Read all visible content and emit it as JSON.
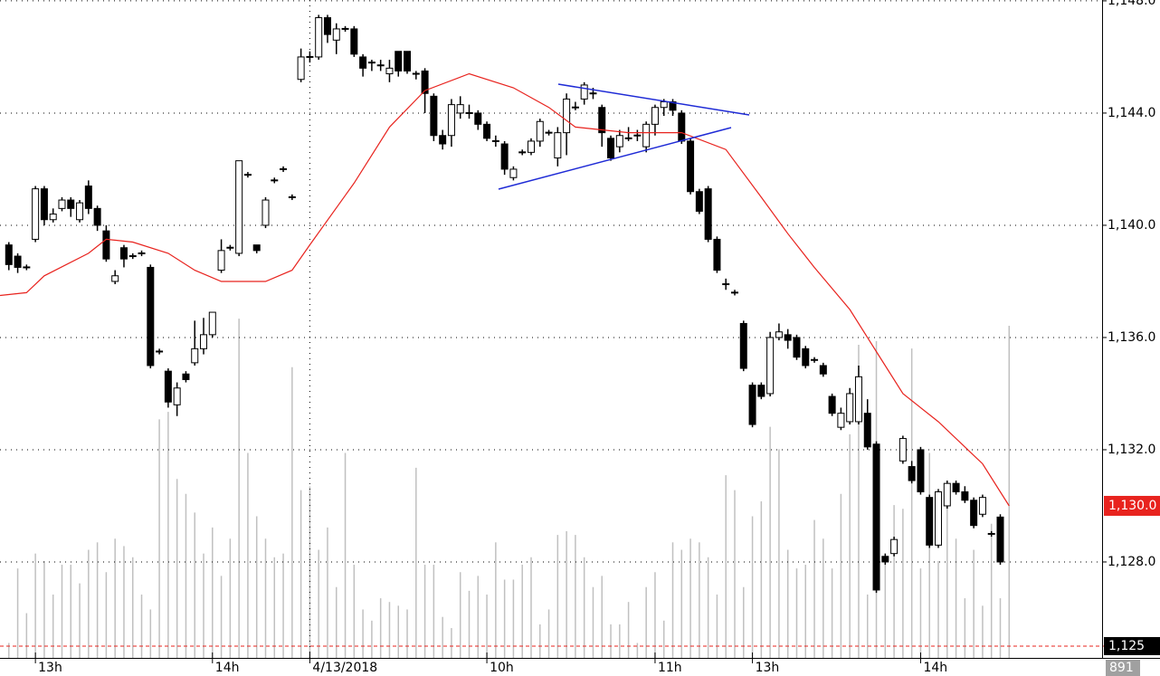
{
  "chart_data": {
    "type": "candlestick",
    "ylim": [
      1124.58,
      1148.03
    ],
    "yticks": [
      {
        "value": 1128,
        "label": "1,128.0"
      },
      {
        "value": 1132,
        "label": "1,132.0"
      },
      {
        "value": 1136,
        "label": "1,136.0"
      },
      {
        "value": 1140,
        "label": "1,140.0"
      },
      {
        "value": 1144,
        "label": "1,144.0"
      },
      {
        "value": 1148,
        "label": "1,148.0"
      }
    ],
    "xlim": [
      -1,
      123.5
    ],
    "xticks": [
      {
        "value": 3,
        "label": "13h"
      },
      {
        "value": 23,
        "label": "14h"
      },
      {
        "value": 34,
        "label": "4/13/2018"
      },
      {
        "value": 54,
        "label": "10h"
      },
      {
        "value": 73,
        "label": "11h"
      },
      {
        "value": 84,
        "label": "13h"
      },
      {
        "value": 103,
        "label": "14h"
      }
    ],
    "grid": true,
    "up_color": "#ffffff",
    "down_color": "#000000",
    "open": [
      1139.3,
      1138.9,
      1138.5,
      1139.5,
      1141.3,
      1140.2,
      1140.6,
      1140.9,
      1140.2,
      1141.4,
      1140.6,
      1139.8,
      1138,
      1139.2,
      1138.9,
      1139,
      1138.5,
      1135.5,
      1134.8,
      1133.6,
      1134.7,
      1135.1,
      1135.6,
      1136.1,
      1138.4,
      1139.2,
      1139,
      1141.8,
      1139.3,
      1140,
      1141.6,
      1142,
      1141,
      1145.2,
      1146,
      1146,
      1147.4,
      1146.6,
      1147,
      1147,
      1146,
      1145.8,
      1145.7,
      1145.4,
      1146.2,
      1146.2,
      1145.4,
      1145.5,
      1144.6,
      1143.2,
      1143.2,
      1144,
      1144,
      1144,
      1143.6,
      1143,
      1142.9,
      1141.7,
      1142.6,
      1142.6,
      1143,
      1143.3,
      1142.4,
      1143.3,
      1144.2,
      1144.5,
      1144.7,
      1144.2,
      1143.1,
      1142.8,
      1143.1,
      1143.2,
      1142.8,
      1143.6,
      1144.2,
      1144.4,
      1144,
      1143,
      1141.2,
      1141.3,
      1139.5,
      1137.9,
      1137.6,
      1136.5,
      1134.3,
      1134.3,
      1134,
      1136,
      1136.1,
      1136,
      1135.6,
      1135.2,
      1135,
      1133.9,
      1132.8,
      1133,
      1133,
      1133.3,
      1132.2,
      1128.2,
      1128.3,
      1131.6,
      1131.4,
      1132,
      1130.3,
      1128.6,
      1130,
      1130.8,
      1130.5,
      1130.2,
      1129.7,
      1129,
      1129.6
    ],
    "high": [
      1139.4,
      1139,
      1138.6,
      1141.4,
      1141.4,
      1140.6,
      1141,
      1141,
      1140.9,
      1141.6,
      1140.7,
      1140,
      1138.4,
      1139.3,
      1139,
      1139.1,
      1138.6,
      1135.6,
      1134.9,
      1134.4,
      1134.8,
      1136.6,
      1136.7,
      1136.9,
      1139.5,
      1139.3,
      1142.3,
      1141.9,
      1139.3,
      1141,
      1141.7,
      1142.1,
      1141.1,
      1146.3,
      1146.2,
      1147.5,
      1147.5,
      1147.2,
      1147.1,
      1147.1,
      1146.1,
      1145.9,
      1145.9,
      1145.9,
      1146.2,
      1146.2,
      1145.5,
      1145.6,
      1144.7,
      1143.4,
      1144.5,
      1144.6,
      1144.3,
      1144.1,
      1143.7,
      1143.2,
      1143,
      1142.1,
      1142.7,
      1143.1,
      1143.8,
      1143.4,
      1143.5,
      1144.7,
      1144.4,
      1145.1,
      1144.9,
      1144.3,
      1143.2,
      1143.4,
      1143.5,
      1143.4,
      1143.7,
      1144.3,
      1144.5,
      1144.5,
      1144.1,
      1143.1,
      1141.3,
      1141.4,
      1139.6,
      1138.1,
      1137.7,
      1136.6,
      1134.4,
      1134.4,
      1136.2,
      1136.5,
      1136.3,
      1136.1,
      1135.7,
      1135.3,
      1135.1,
      1134,
      1133.5,
      1134.2,
      1135,
      1133.8,
      1132.3,
      1128.3,
      1128.9,
      1132.5,
      1131.6,
      1132.1,
      1130.4,
      1130.6,
      1130.9,
      1130.9,
      1130.7,
      1130.3,
      1130.4,
      1129.1,
      1129.7
    ],
    "low": [
      1138.4,
      1138.3,
      1138.4,
      1139.4,
      1140,
      1140.1,
      1140.5,
      1140.3,
      1140.1,
      1140.4,
      1139.8,
      1138.7,
      1137.9,
      1138.5,
      1138.8,
      1138.9,
      1134.9,
      1135.4,
      1133.5,
      1133.2,
      1134.4,
      1135,
      1135.4,
      1136,
      1138.3,
      1139.1,
      1138.9,
      1141.7,
      1139,
      1139.9,
      1141.5,
      1141.9,
      1140.9,
      1145.1,
      1145.8,
      1145.9,
      1146.5,
      1146.1,
      1146.9,
      1146,
      1145.3,
      1145.5,
      1145.5,
      1145.1,
      1145.3,
      1145.4,
      1145.2,
      1144,
      1143,
      1142.7,
      1142.8,
      1143.8,
      1143.8,
      1143.4,
      1143,
      1142.8,
      1141.8,
      1141.6,
      1142.5,
      1142.5,
      1142.8,
      1143.2,
      1142.1,
      1142.5,
      1144.1,
      1144.3,
      1144.5,
      1142.8,
      1142.3,
      1142.6,
      1143,
      1143,
      1142.6,
      1143.2,
      1143.9,
      1143.9,
      1142.9,
      1141.1,
      1140.4,
      1139.4,
      1138.3,
      1137.7,
      1137.5,
      1134.8,
      1132.8,
      1133.8,
      1133.9,
      1135.9,
      1135.6,
      1135.2,
      1134.9,
      1135.1,
      1134.6,
      1133.2,
      1132.7,
      1132.9,
      1132.9,
      1132,
      1126.9,
      1127.9,
      1128.2,
      1131.5,
      1130.8,
      1130.4,
      1128.5,
      1128.5,
      1129.9,
      1130.4,
      1130.1,
      1129.2,
      1129.6,
      1128.9,
      1127.9
    ],
    "close": [
      1138.6,
      1138.5,
      1138.5,
      1141.3,
      1140.2,
      1140.4,
      1140.9,
      1140.6,
      1140.8,
      1140.6,
      1140,
      1138.8,
      1138.2,
      1138.8,
      1138.9,
      1139,
      1135,
      1135.5,
      1133.7,
      1134.2,
      1134.5,
      1135.6,
      1136.1,
      1136.9,
      1139.1,
      1139.2,
      1142.3,
      1141.8,
      1139.1,
      1140.9,
      1141.6,
      1142,
      1141,
      1146,
      1146,
      1147.4,
      1146.8,
      1147,
      1147,
      1146.1,
      1145.6,
      1145.8,
      1145.7,
      1145.6,
      1145.5,
      1145.5,
      1145.4,
      1144.7,
      1143.2,
      1142.9,
      1144.3,
      1144.3,
      1144,
      1143.6,
      1143.1,
      1143,
      1142,
      1142,
      1142.6,
      1143,
      1143.7,
      1143.3,
      1143.3,
      1144.5,
      1144.2,
      1145,
      1144.7,
      1143.3,
      1142.4,
      1143.2,
      1143.1,
      1143.2,
      1143.6,
      1144.2,
      1144.4,
      1144.1,
      1143,
      1141.2,
      1140.5,
      1139.5,
      1138.4,
      1137.9,
      1137.6,
      1134.9,
      1132.9,
      1133.9,
      1136,
      1136.2,
      1135.9,
      1135.3,
      1135,
      1135.2,
      1134.7,
      1133.3,
      1133.3,
      1134,
      1134.6,
      1132.1,
      1127,
      1128,
      1128.8,
      1132.4,
      1130.9,
      1130.5,
      1128.6,
      1130.5,
      1130.8,
      1130.5,
      1130.2,
      1129.3,
      1130.3,
      1129,
      1128
    ],
    "volume": {
      "color": "#c0c0c0",
      "vlim": [
        0,
        1765
      ],
      "values": [
        40,
        240,
        120,
        280,
        260,
        170,
        250,
        250,
        200,
        290,
        310,
        230,
        320,
        300,
        270,
        170,
        130,
        640,
        660,
        480,
        440,
        390,
        280,
        350,
        220,
        320,
        910,
        550,
        380,
        320,
        270,
        280,
        780,
        450,
        460,
        290,
        350,
        190,
        550,
        250,
        130,
        100,
        160,
        150,
        140,
        130,
        510,
        250,
        250,
        110,
        80,
        230,
        180,
        220,
        170,
        310,
        210,
        210,
        250,
        270,
        90,
        130,
        330,
        340,
        330,
        270,
        190,
        220,
        90,
        90,
        150,
        40,
        190,
        230,
        100,
        310,
        290,
        320,
        310,
        270,
        170,
        490,
        450,
        190,
        380,
        420,
        620,
        560,
        290,
        240,
        250,
        370,
        320,
        240,
        440,
        600,
        840,
        170,
        850,
        280,
        410,
        400,
        830,
        240,
        550,
        260,
        420,
        320,
        160,
        290,
        140,
        360,
        160,
        891
      ]
    },
    "moving_average": {
      "color": "#e8231e",
      "x": [
        -1,
        2,
        4,
        9,
        11,
        14,
        18,
        21,
        24,
        29,
        32,
        34,
        39,
        43,
        47,
        52,
        57,
        61,
        64,
        70,
        76,
        81,
        85,
        88,
        91,
        95,
        98,
        101,
        105,
        110,
        113
      ],
      "values": [
        1137.5,
        1137.6,
        1138.2,
        1139,
        1139.5,
        1139.4,
        1139,
        1138.4,
        1138,
        1138,
        1138.4,
        1139.3,
        1141.5,
        1143.5,
        1144.8,
        1145.4,
        1144.9,
        1144.2,
        1143.5,
        1143.3,
        1143.3,
        1142.7,
        1141,
        1139.7,
        1138.5,
        1137,
        1135.5,
        1134,
        1133,
        1131.5,
        1130
      ]
    },
    "last_price": {
      "value": 1130,
      "label": "1,130.0",
      "color": "#e8231e"
    },
    "reference_line": {
      "value": 1125,
      "label": "1,125",
      "color": "#e8231e"
    },
    "last_volume": {
      "value": 891,
      "label": "891"
    }
  }
}
